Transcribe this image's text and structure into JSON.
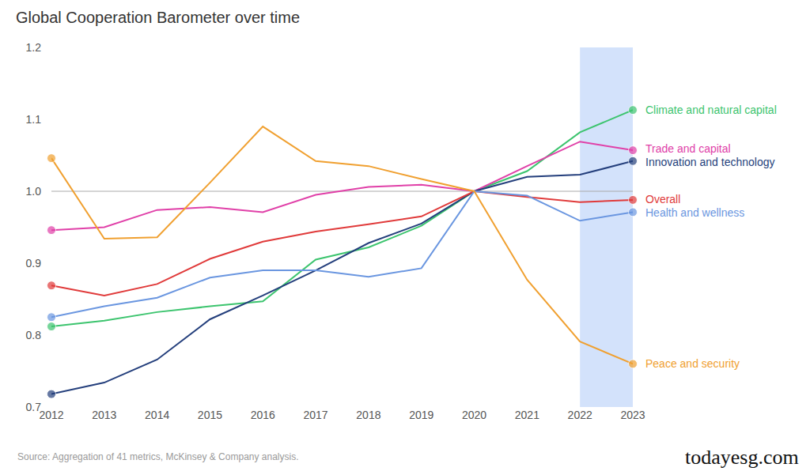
{
  "chart_data": {
    "type": "line",
    "title": "Global Cooperation Barometer over time",
    "x": [
      2012,
      2013,
      2014,
      2015,
      2016,
      2017,
      2018,
      2019,
      2020,
      2021,
      2022,
      2023
    ],
    "series": [
      {
        "name": "Climate and natural capital",
        "color": "#3cc46e",
        "values": [
          0.812,
          0.82,
          0.832,
          0.84,
          0.847,
          0.905,
          0.922,
          0.952,
          1.0,
          1.028,
          1.082,
          1.113
        ]
      },
      {
        "name": "Trade and capital",
        "color": "#e040a8",
        "values": [
          0.946,
          0.95,
          0.974,
          0.978,
          0.971,
          0.995,
          1.006,
          1.009,
          1.0,
          1.035,
          1.069,
          1.057
        ]
      },
      {
        "name": "Innovation and technology",
        "color": "#243f7c",
        "values": [
          0.718,
          0.734,
          0.766,
          0.822,
          0.855,
          0.89,
          0.928,
          0.955,
          1.0,
          1.02,
          1.023,
          1.042
        ]
      },
      {
        "name": "Overall",
        "color": "#e03a3a",
        "values": [
          0.869,
          0.855,
          0.871,
          0.906,
          0.93,
          0.944,
          0.954,
          0.965,
          1.0,
          0.992,
          0.985,
          0.988
        ]
      },
      {
        "name": "Health and wellness",
        "color": "#6a96e0",
        "values": [
          0.825,
          0.84,
          0.852,
          0.88,
          0.89,
          0.89,
          0.881,
          0.893,
          1.0,
          0.994,
          0.959,
          0.971
        ]
      },
      {
        "name": "Peace and security",
        "color": "#f0a030",
        "values": [
          1.046,
          0.934,
          0.936,
          1.012,
          1.09,
          1.042,
          1.035,
          1.017,
          1.0,
          0.877,
          0.791,
          0.76
        ]
      }
    ],
    "xlim": [
      2012,
      2023
    ],
    "xticks": [
      2012,
      2013,
      2014,
      2015,
      2016,
      2017,
      2018,
      2019,
      2020,
      2021,
      2022,
      2023
    ],
    "ylim": [
      0.7,
      1.2
    ],
    "yticks": [
      0.7,
      0.8,
      0.9,
      {
        "value": 1,
        "label": "1.0"
      },
      1.1,
      1.2
    ],
    "reference_line": 1,
    "highlight_x": [
      2022,
      2023
    ],
    "grid": false,
    "marker": "endpoints",
    "annotations": [
      "Source: Aggregation of 41 metrics, McKinsey & Company analysis.",
      "todayesg.com"
    ]
  }
}
